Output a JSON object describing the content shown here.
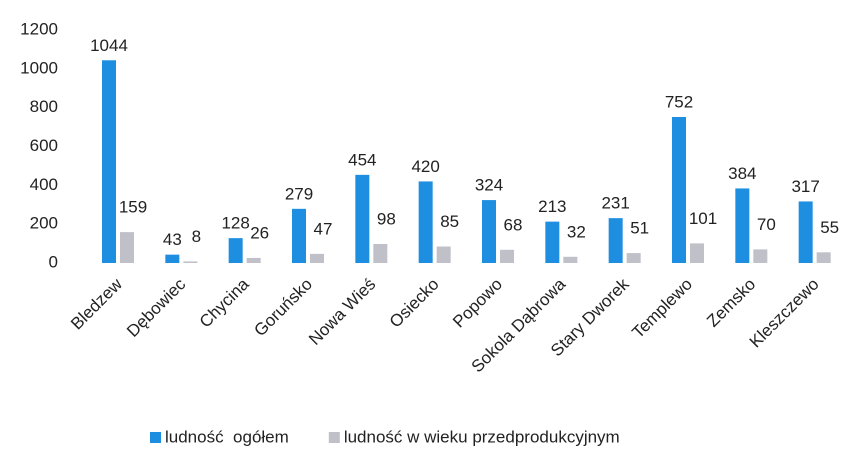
{
  "chart_data": {
    "type": "bar",
    "categories": [
      "Bledzew",
      "Dębowiec",
      "Chycina",
      "Goruńsko",
      "Nowa Wieś",
      "Osiecko",
      "Popowo",
      "Sokola Dąbrowa",
      "Stary Dworek",
      "Templewo",
      "Zemsko",
      "Kleszczewo"
    ],
    "series": [
      {
        "name": "ludność  ogółem",
        "color": "#1e8ee0",
        "values": [
          1044,
          43,
          128,
          279,
          454,
          420,
          324,
          213,
          231,
          752,
          384,
          317
        ]
      },
      {
        "name": "ludność w wieku przedprodukcyjnym",
        "color": "#bfc0c8",
        "values": [
          159,
          8,
          26,
          47,
          98,
          85,
          68,
          32,
          51,
          101,
          70,
          55
        ]
      }
    ],
    "ylim": [
      0,
      1200
    ],
    "yticks": [
      0,
      200,
      400,
      600,
      800,
      1000,
      1200
    ],
    "grid": false,
    "legend": "bottom"
  }
}
